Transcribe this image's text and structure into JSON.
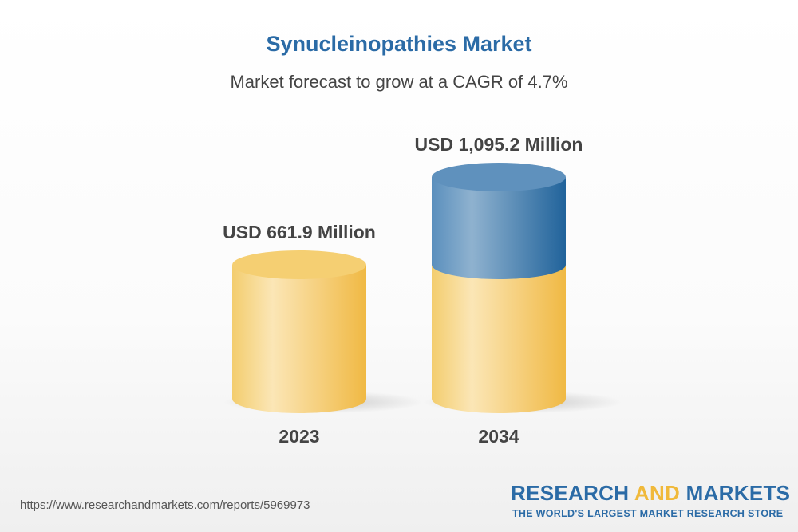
{
  "title": "Synucleinopathies Market",
  "subtitle": "Market forecast to grow at a CAGR of 4.7%",
  "chart_data": {
    "type": "bar",
    "style": "3d-cylinder",
    "categories": [
      "2023",
      "2034"
    ],
    "values": [
      661.9,
      1095.2
    ],
    "data_labels": [
      "USD 661.9 Million",
      "USD 1,095.2 Million"
    ],
    "unit": "USD Million",
    "colors": {
      "base": "#f2c45a",
      "growth": "#2e6fa3"
    }
  },
  "footer": {
    "url": "https://www.researchandmarkets.com/reports/5969973",
    "logo_part1": "RESEARCH ",
    "logo_part2": "AND",
    "logo_part3": " MARKETS",
    "tagline": "THE WORLD'S LARGEST MARKET RESEARCH STORE"
  }
}
